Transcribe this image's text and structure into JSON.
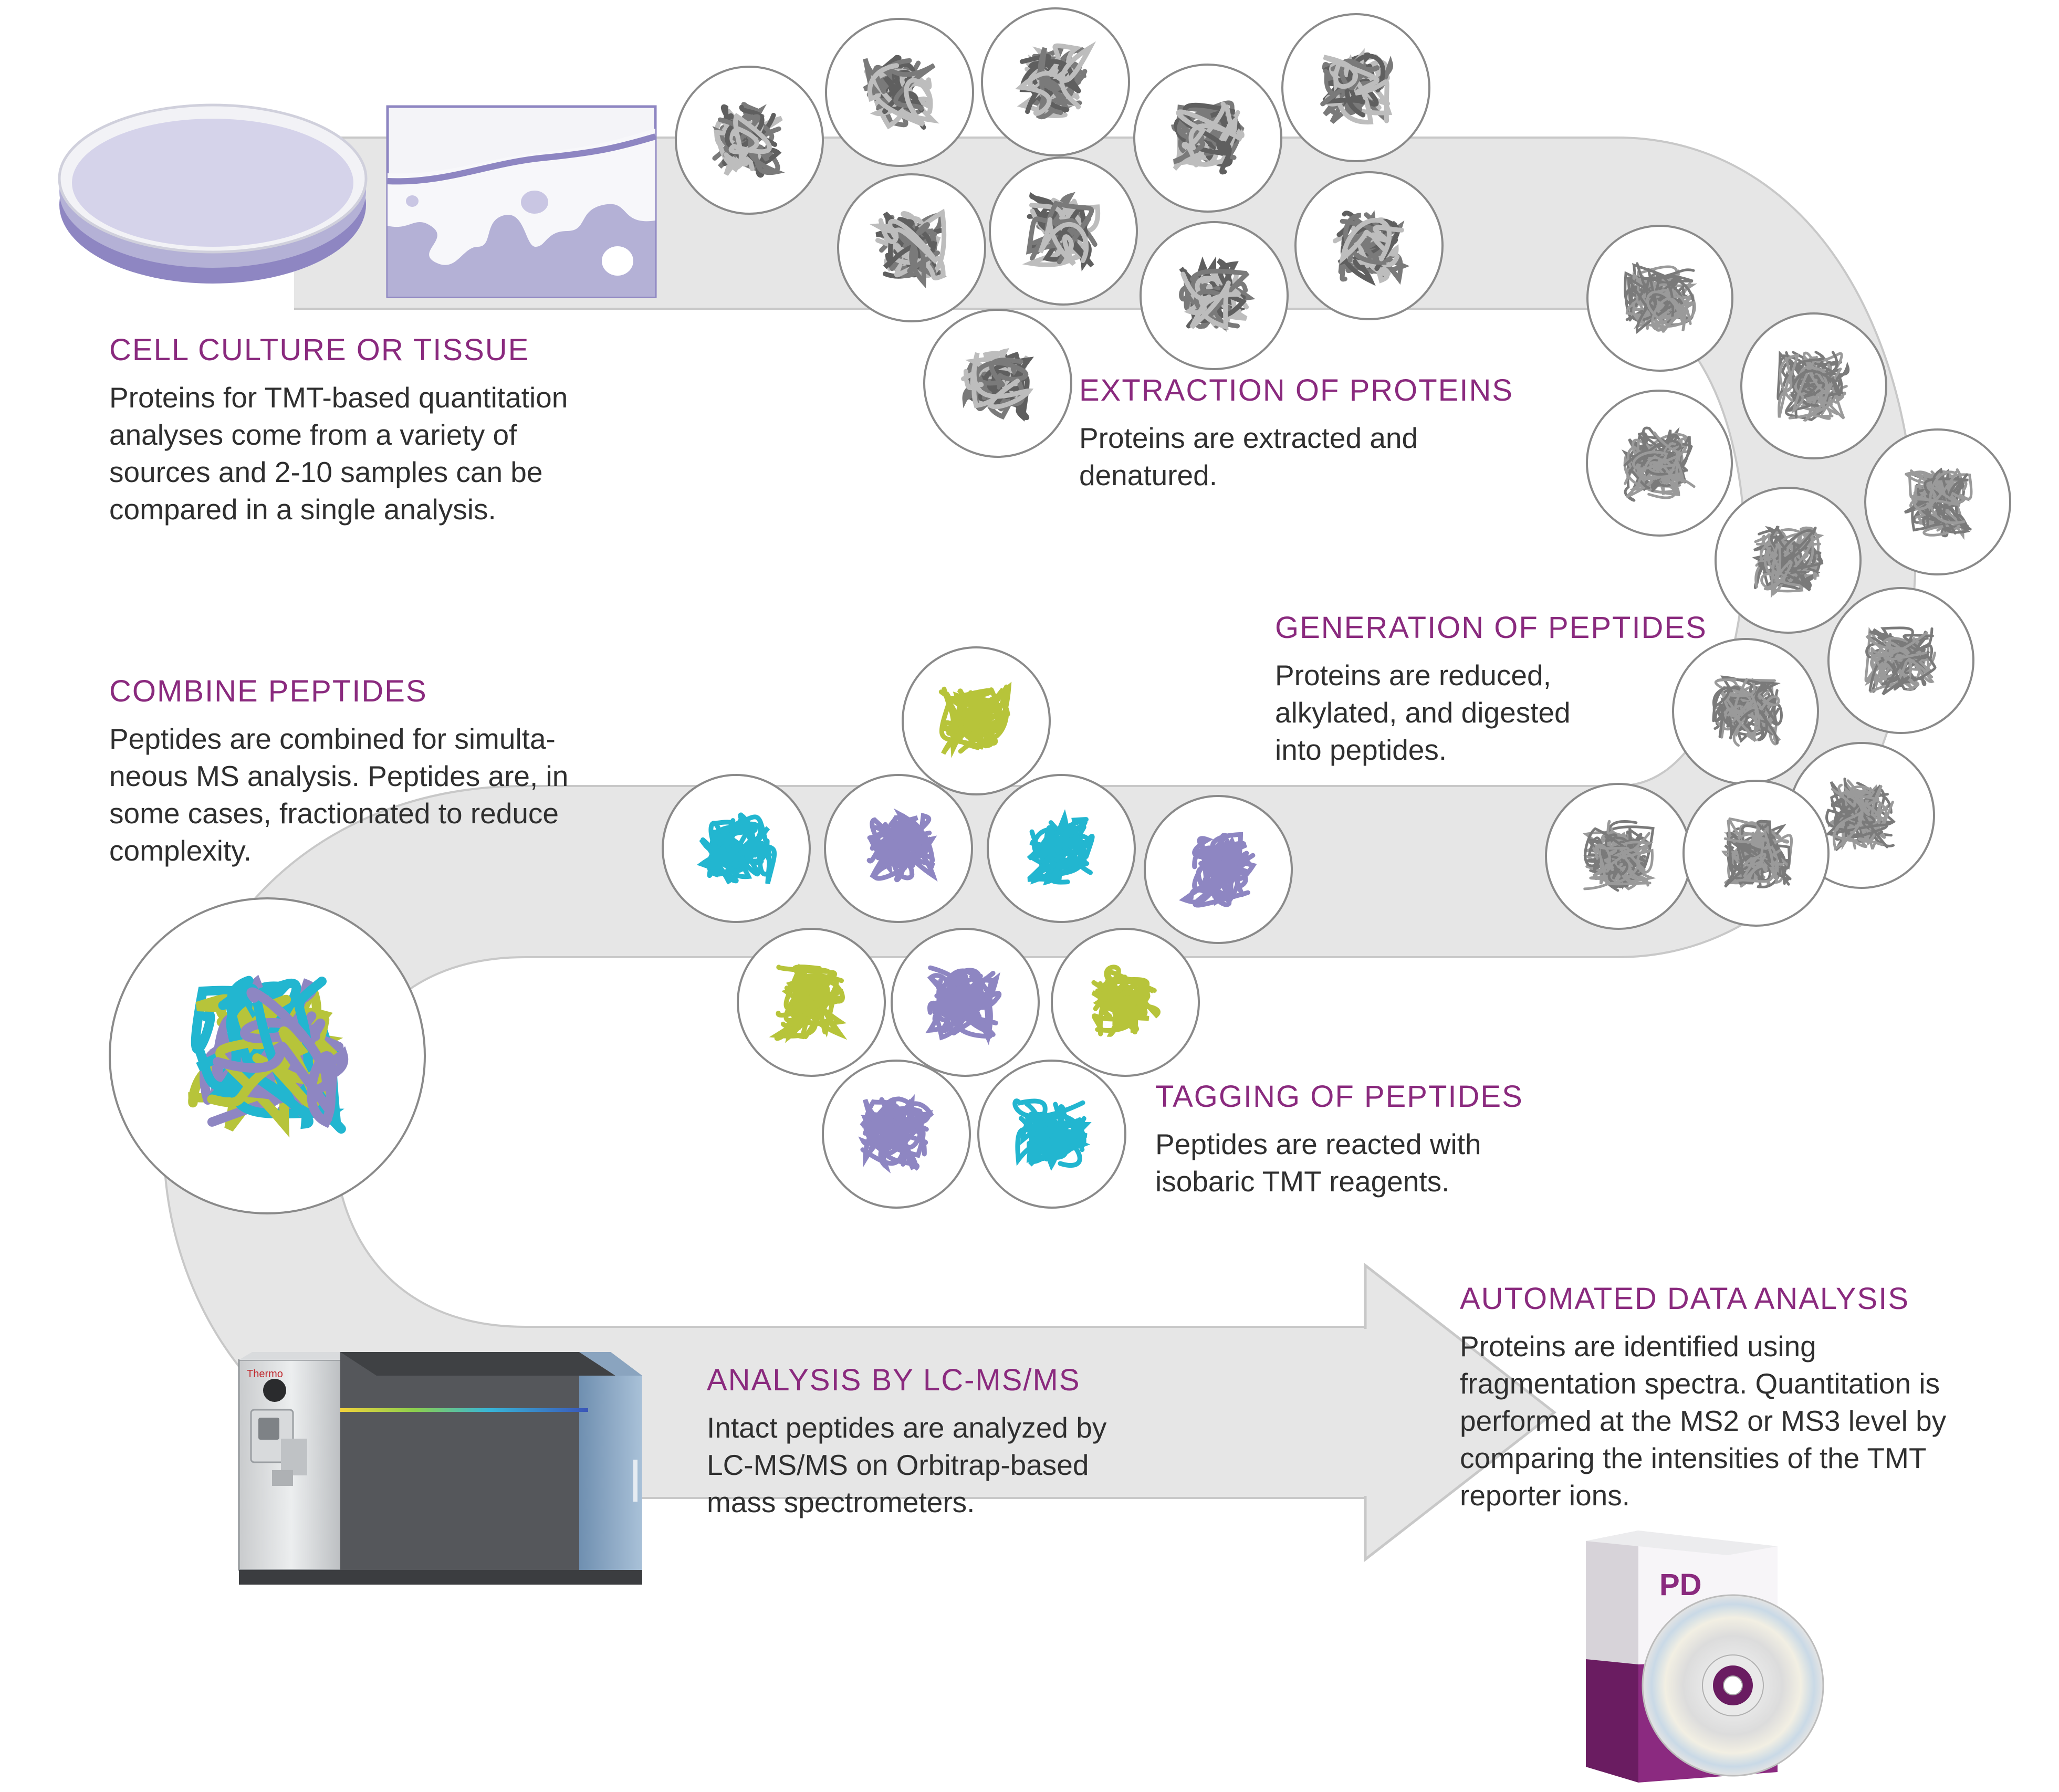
{
  "palette": {
    "band": "#e6e6e6",
    "band_edge": "#c8c8c8",
    "title": "#8a2a7e",
    "text": "#2f2f2f",
    "lavender": "#b4b1d6",
    "grey_tangle": "#7a7a7a",
    "light_tangle": "#bdbdbd",
    "cyan": "#22b6d0",
    "lime": "#b7c43a",
    "purple": "#8e86c2",
    "pd_purple": "#7d2272"
  },
  "steps": [
    {
      "id": "cell-culture",
      "title": "CELL CULTURE OR TISSUE",
      "lines": [
        "Proteins for TMT-based quantitation",
        "analyses come from a variety of",
        "sources and 2-10 samples can be",
        "compared in a single analysis."
      ]
    },
    {
      "id": "extraction",
      "title": "EXTRACTION OF PROTEINS",
      "lines": [
        "Proteins are extracted and",
        "denatured."
      ]
    },
    {
      "id": "generation",
      "title": "GENERATION OF PEPTIDES",
      "lines": [
        "Proteins are reduced,",
        "alkylated, and digested",
        "into peptides."
      ]
    },
    {
      "id": "combine",
      "title": "COMBINE PEPTIDES",
      "lines": [
        "Peptides are combined for simulta-",
        "neous MS analysis. Peptides are, in",
        "some cases, fractionated to reduce",
        "complexity."
      ]
    },
    {
      "id": "tagging",
      "title": "TAGGING OF PEPTIDES",
      "lines": [
        "Peptides are reacted with",
        "isobaric TMT reagents."
      ]
    },
    {
      "id": "lcms",
      "title": "ANALYSIS BY LC-MS/MS",
      "lines": [
        "Intact peptides are analyzed by",
        "LC-MS/MS on Orbitrap-based",
        "mass spectrometers."
      ]
    },
    {
      "id": "data-analysis",
      "title": "AUTOMATED DATA ANALYSIS",
      "lines": [
        "Proteins are identified using",
        "fragmentation spectra. Quantitation is",
        "performed at the MS2 or MS3 level by",
        "comparing the intensities of the TMT",
        "reporter ions."
      ]
    }
  ],
  "instrument": {
    "brand": "Thermo"
  },
  "software_box": {
    "label": "PD"
  }
}
